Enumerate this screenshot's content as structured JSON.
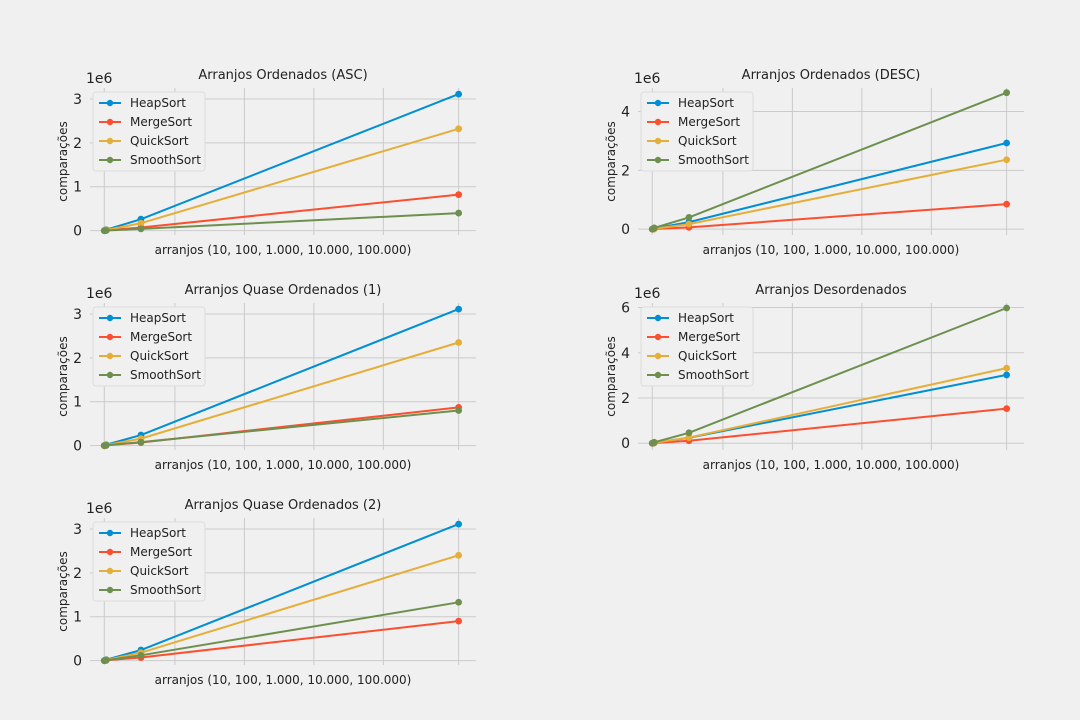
{
  "series_names": [
    "HeapSort",
    "MergeSort",
    "QuickSort",
    "SmoothSort"
  ],
  "colors": {
    "HeapSort": "#008fd5",
    "MergeSort": "#fc4f30",
    "QuickSort": "#e5ae38",
    "SmoothSort": "#6d904f",
    "background": "#f0f0f0",
    "grid": "#cbcbcb"
  },
  "chart_data": [
    {
      "type": "line",
      "title": "Arranjos Ordenados (ASC)",
      "xlabel": "arranjos (10, 100, 1.000, 10.000, 100.000)",
      "ylabel": "comparações",
      "y_offset_label": "1e6",
      "x": [
        10,
        100,
        1000,
        10000,
        100000
      ],
      "ylim": [
        -0.1,
        3.25
      ],
      "yticks": [
        0,
        1,
        2,
        3
      ],
      "legend": "top-left",
      "grid": true,
      "series": [
        {
          "name": "HeapSort",
          "values": [
            0,
            0.001,
            0.021,
            0.26,
            3.11
          ]
        },
        {
          "name": "MergeSort",
          "values": [
            0,
            0.0005,
            0.006,
            0.07,
            0.82
          ]
        },
        {
          "name": "QuickSort",
          "values": [
            0,
            0.001,
            0.015,
            0.17,
            2.32
          ]
        },
        {
          "name": "SmoothSort",
          "values": [
            0,
            0.0002,
            0.003,
            0.04,
            0.4
          ]
        }
      ]
    },
    {
      "type": "line",
      "title": "Arranjos Ordenados (DESC)",
      "xlabel": "arranjos (10, 100, 1.000, 10.000, 100.000)",
      "ylabel": "comparações",
      "y_offset_label": "1e6",
      "x": [
        10,
        100,
        1000,
        10000,
        100000
      ],
      "ylim": [
        -0.2,
        4.8
      ],
      "yticks": [
        0,
        2,
        4
      ],
      "legend": "top-left",
      "grid": true,
      "series": [
        {
          "name": "HeapSort",
          "values": [
            0,
            0.001,
            0.02,
            0.24,
            2.93
          ]
        },
        {
          "name": "MergeSort",
          "values": [
            0,
            0.0005,
            0.005,
            0.06,
            0.85
          ]
        },
        {
          "name": "QuickSort",
          "values": [
            0,
            0.001,
            0.014,
            0.17,
            2.36
          ]
        },
        {
          "name": "SmoothSort",
          "values": [
            0,
            0.002,
            0.04,
            0.4,
            4.64
          ]
        }
      ]
    },
    {
      "type": "line",
      "title": "Arranjos Quase Ordenados (1)",
      "xlabel": "arranjos (10, 100, 1.000, 10.000, 100.000)",
      "ylabel": "comparações",
      "y_offset_label": "1e6",
      "x": [
        10,
        100,
        1000,
        10000,
        100000
      ],
      "ylim": [
        -0.1,
        3.25
      ],
      "yticks": [
        0,
        1,
        2,
        3
      ],
      "legend": "top-left",
      "grid": true,
      "series": [
        {
          "name": "HeapSort",
          "values": [
            0,
            0.001,
            0.021,
            0.24,
            3.11
          ]
        },
        {
          "name": "MergeSort",
          "values": [
            0,
            0.0005,
            0.006,
            0.07,
            0.87
          ]
        },
        {
          "name": "QuickSort",
          "values": [
            0,
            0.001,
            0.015,
            0.16,
            2.35
          ]
        },
        {
          "name": "SmoothSort",
          "values": [
            0,
            0.0005,
            0.006,
            0.08,
            0.8
          ]
        }
      ]
    },
    {
      "type": "line",
      "title": "Arranjos Desordenados",
      "xlabel": "arranjos (10, 100, 1.000, 10.000, 100.000)",
      "ylabel": "comparações",
      "y_offset_label": "1e6",
      "x": [
        10,
        100,
        1000,
        10000,
        100000
      ],
      "ylim": [
        -0.3,
        6.2
      ],
      "yticks": [
        0,
        2,
        4,
        6
      ],
      "legend": "top-left",
      "grid": true,
      "series": [
        {
          "name": "HeapSort",
          "values": [
            0,
            0.001,
            0.02,
            0.24,
            3.02
          ]
        },
        {
          "name": "MergeSort",
          "values": [
            0,
            0.0006,
            0.009,
            0.11,
            1.53
          ]
        },
        {
          "name": "QuickSort",
          "values": [
            0,
            0.001,
            0.02,
            0.25,
            3.32
          ]
        },
        {
          "name": "SmoothSort",
          "values": [
            0,
            0.002,
            0.04,
            0.46,
            5.98
          ]
        }
      ]
    },
    {
      "type": "line",
      "title": "Arranjos Quase Ordenados (2)",
      "xlabel": "arranjos (10, 100, 1.000, 10.000, 100.000)",
      "ylabel": "comparações",
      "y_offset_label": "1e6",
      "x": [
        10,
        100,
        1000,
        10000,
        100000
      ],
      "ylim": [
        -0.1,
        3.25
      ],
      "yticks": [
        0,
        1,
        2,
        3
      ],
      "legend": "top-left",
      "grid": true,
      "series": [
        {
          "name": "HeapSort",
          "values": [
            0,
            0.001,
            0.021,
            0.24,
            3.11
          ]
        },
        {
          "name": "MergeSort",
          "values": [
            0,
            0.0005,
            0.006,
            0.07,
            0.9
          ]
        },
        {
          "name": "QuickSort",
          "values": [
            0,
            0.001,
            0.015,
            0.18,
            2.4
          ]
        },
        {
          "name": "SmoothSort",
          "values": [
            0,
            0.0008,
            0.01,
            0.12,
            1.33
          ]
        }
      ]
    }
  ]
}
